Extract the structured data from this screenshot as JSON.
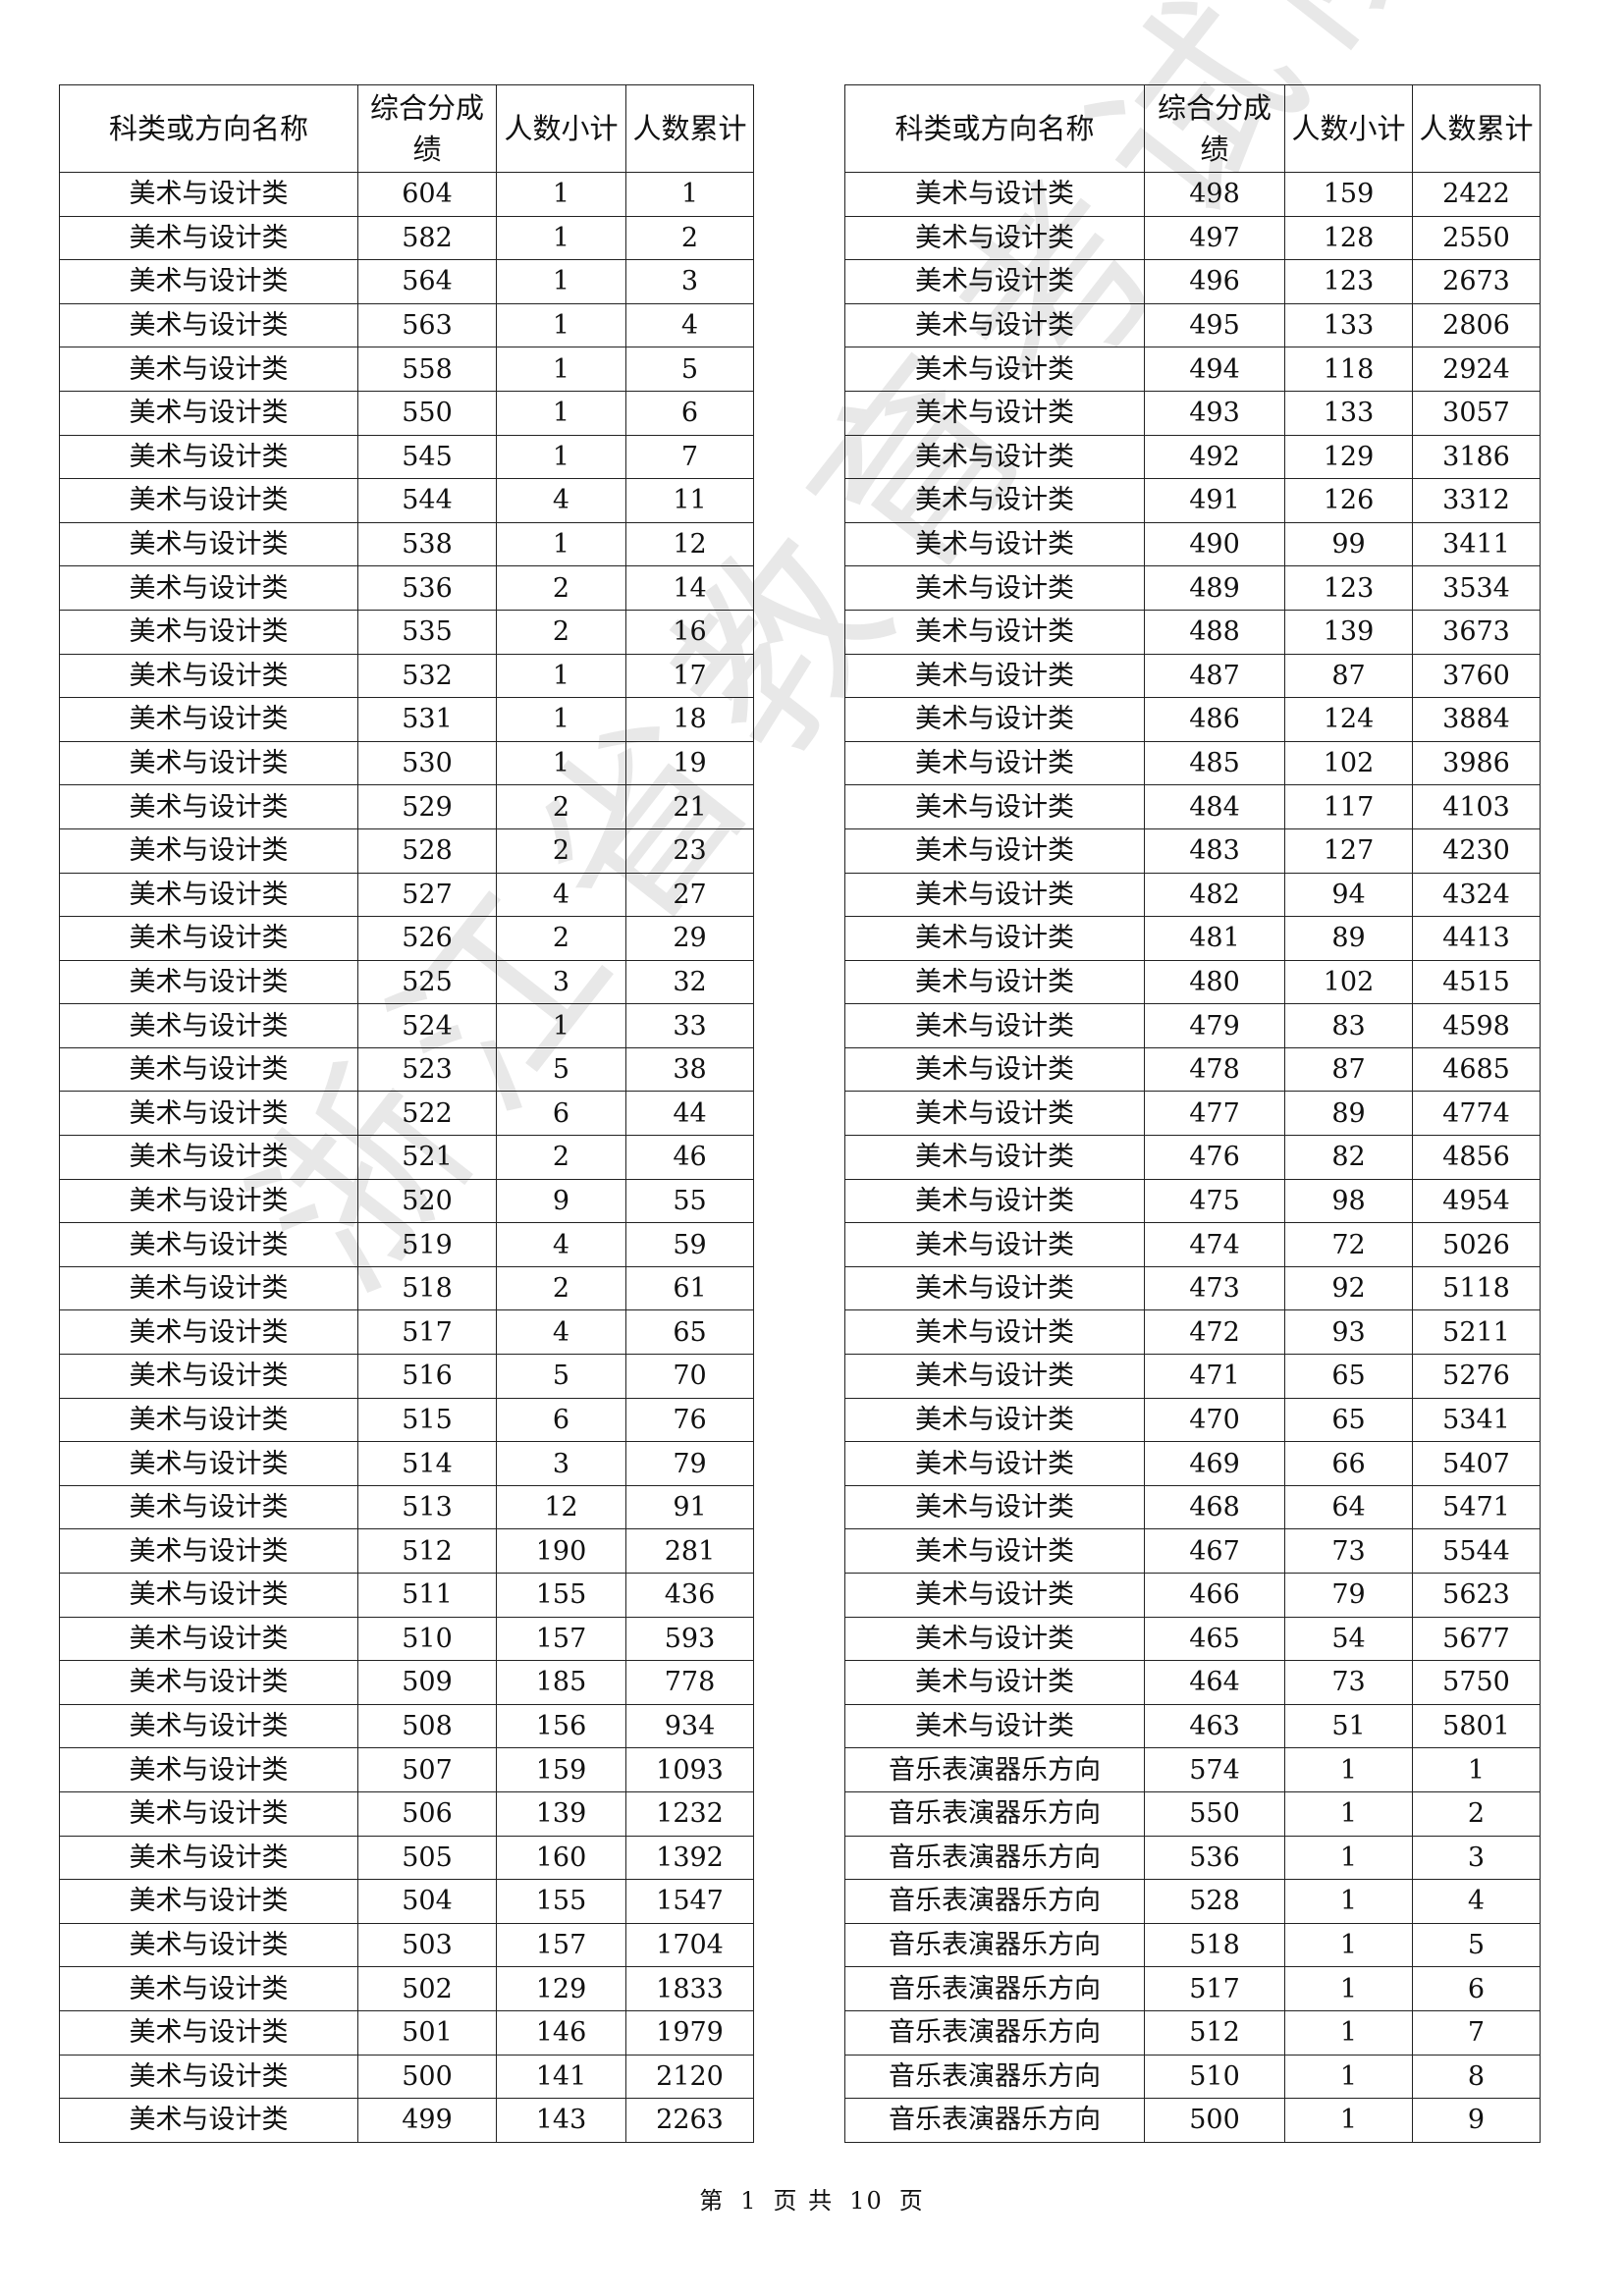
{
  "headers": {
    "name": "科类或方向名称",
    "score": "综合分成绩",
    "count": "人数小计",
    "cumulative": "人数累计"
  },
  "left_rows": [
    [
      "美术与设计类",
      "604",
      "1",
      "1"
    ],
    [
      "美术与设计类",
      "582",
      "1",
      "2"
    ],
    [
      "美术与设计类",
      "564",
      "1",
      "3"
    ],
    [
      "美术与设计类",
      "563",
      "1",
      "4"
    ],
    [
      "美术与设计类",
      "558",
      "1",
      "5"
    ],
    [
      "美术与设计类",
      "550",
      "1",
      "6"
    ],
    [
      "美术与设计类",
      "545",
      "1",
      "7"
    ],
    [
      "美术与设计类",
      "544",
      "4",
      "11"
    ],
    [
      "美术与设计类",
      "538",
      "1",
      "12"
    ],
    [
      "美术与设计类",
      "536",
      "2",
      "14"
    ],
    [
      "美术与设计类",
      "535",
      "2",
      "16"
    ],
    [
      "美术与设计类",
      "532",
      "1",
      "17"
    ],
    [
      "美术与设计类",
      "531",
      "1",
      "18"
    ],
    [
      "美术与设计类",
      "530",
      "1",
      "19"
    ],
    [
      "美术与设计类",
      "529",
      "2",
      "21"
    ],
    [
      "美术与设计类",
      "528",
      "2",
      "23"
    ],
    [
      "美术与设计类",
      "527",
      "4",
      "27"
    ],
    [
      "美术与设计类",
      "526",
      "2",
      "29"
    ],
    [
      "美术与设计类",
      "525",
      "3",
      "32"
    ],
    [
      "美术与设计类",
      "524",
      "1",
      "33"
    ],
    [
      "美术与设计类",
      "523",
      "5",
      "38"
    ],
    [
      "美术与设计类",
      "522",
      "6",
      "44"
    ],
    [
      "美术与设计类",
      "521",
      "2",
      "46"
    ],
    [
      "美术与设计类",
      "520",
      "9",
      "55"
    ],
    [
      "美术与设计类",
      "519",
      "4",
      "59"
    ],
    [
      "美术与设计类",
      "518",
      "2",
      "61"
    ],
    [
      "美术与设计类",
      "517",
      "4",
      "65"
    ],
    [
      "美术与设计类",
      "516",
      "5",
      "70"
    ],
    [
      "美术与设计类",
      "515",
      "6",
      "76"
    ],
    [
      "美术与设计类",
      "514",
      "3",
      "79"
    ],
    [
      "美术与设计类",
      "513",
      "12",
      "91"
    ],
    [
      "美术与设计类",
      "512",
      "190",
      "281"
    ],
    [
      "美术与设计类",
      "511",
      "155",
      "436"
    ],
    [
      "美术与设计类",
      "510",
      "157",
      "593"
    ],
    [
      "美术与设计类",
      "509",
      "185",
      "778"
    ],
    [
      "美术与设计类",
      "508",
      "156",
      "934"
    ],
    [
      "美术与设计类",
      "507",
      "159",
      "1093"
    ],
    [
      "美术与设计类",
      "506",
      "139",
      "1232"
    ],
    [
      "美术与设计类",
      "505",
      "160",
      "1392"
    ],
    [
      "美术与设计类",
      "504",
      "155",
      "1547"
    ],
    [
      "美术与设计类",
      "503",
      "157",
      "1704"
    ],
    [
      "美术与设计类",
      "502",
      "129",
      "1833"
    ],
    [
      "美术与设计类",
      "501",
      "146",
      "1979"
    ],
    [
      "美术与设计类",
      "500",
      "141",
      "2120"
    ],
    [
      "美术与设计类",
      "499",
      "143",
      "2263"
    ]
  ],
  "right_rows": [
    [
      "美术与设计类",
      "498",
      "159",
      "2422"
    ],
    [
      "美术与设计类",
      "497",
      "128",
      "2550"
    ],
    [
      "美术与设计类",
      "496",
      "123",
      "2673"
    ],
    [
      "美术与设计类",
      "495",
      "133",
      "2806"
    ],
    [
      "美术与设计类",
      "494",
      "118",
      "2924"
    ],
    [
      "美术与设计类",
      "493",
      "133",
      "3057"
    ],
    [
      "美术与设计类",
      "492",
      "129",
      "3186"
    ],
    [
      "美术与设计类",
      "491",
      "126",
      "3312"
    ],
    [
      "美术与设计类",
      "490",
      "99",
      "3411"
    ],
    [
      "美术与设计类",
      "489",
      "123",
      "3534"
    ],
    [
      "美术与设计类",
      "488",
      "139",
      "3673"
    ],
    [
      "美术与设计类",
      "487",
      "87",
      "3760"
    ],
    [
      "美术与设计类",
      "486",
      "124",
      "3884"
    ],
    [
      "美术与设计类",
      "485",
      "102",
      "3986"
    ],
    [
      "美术与设计类",
      "484",
      "117",
      "4103"
    ],
    [
      "美术与设计类",
      "483",
      "127",
      "4230"
    ],
    [
      "美术与设计类",
      "482",
      "94",
      "4324"
    ],
    [
      "美术与设计类",
      "481",
      "89",
      "4413"
    ],
    [
      "美术与设计类",
      "480",
      "102",
      "4515"
    ],
    [
      "美术与设计类",
      "479",
      "83",
      "4598"
    ],
    [
      "美术与设计类",
      "478",
      "87",
      "4685"
    ],
    [
      "美术与设计类",
      "477",
      "89",
      "4774"
    ],
    [
      "美术与设计类",
      "476",
      "82",
      "4856"
    ],
    [
      "美术与设计类",
      "475",
      "98",
      "4954"
    ],
    [
      "美术与设计类",
      "474",
      "72",
      "5026"
    ],
    [
      "美术与设计类",
      "473",
      "92",
      "5118"
    ],
    [
      "美术与设计类",
      "472",
      "93",
      "5211"
    ],
    [
      "美术与设计类",
      "471",
      "65",
      "5276"
    ],
    [
      "美术与设计类",
      "470",
      "65",
      "5341"
    ],
    [
      "美术与设计类",
      "469",
      "66",
      "5407"
    ],
    [
      "美术与设计类",
      "468",
      "64",
      "5471"
    ],
    [
      "美术与设计类",
      "467",
      "73",
      "5544"
    ],
    [
      "美术与设计类",
      "466",
      "79",
      "5623"
    ],
    [
      "美术与设计类",
      "465",
      "54",
      "5677"
    ],
    [
      "美术与设计类",
      "464",
      "73",
      "5750"
    ],
    [
      "美术与设计类",
      "463",
      "51",
      "5801"
    ],
    [
      "音乐表演器乐方向",
      "574",
      "1",
      "1"
    ],
    [
      "音乐表演器乐方向",
      "550",
      "1",
      "2"
    ],
    [
      "音乐表演器乐方向",
      "536",
      "1",
      "3"
    ],
    [
      "音乐表演器乐方向",
      "528",
      "1",
      "4"
    ],
    [
      "音乐表演器乐方向",
      "518",
      "1",
      "5"
    ],
    [
      "音乐表演器乐方向",
      "517",
      "1",
      "6"
    ],
    [
      "音乐表演器乐方向",
      "512",
      "1",
      "7"
    ],
    [
      "音乐表演器乐方向",
      "510",
      "1",
      "8"
    ],
    [
      "音乐表演器乐方向",
      "500",
      "1",
      "9"
    ]
  ],
  "footer": {
    "prefix": "第",
    "page": "1",
    "middle": "页 共",
    "total": "10",
    "suffix": "页"
  },
  "watermark": "浙江省教育考试院"
}
